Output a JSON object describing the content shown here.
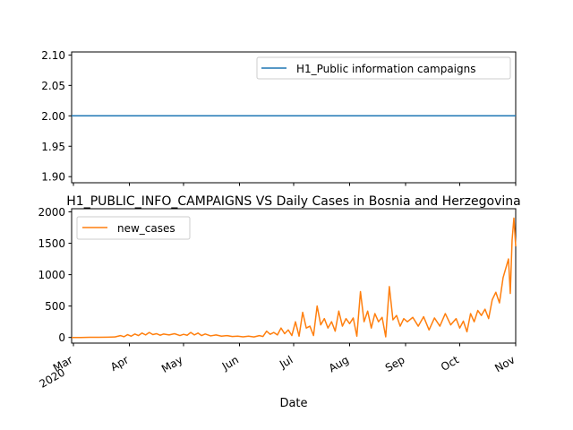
{
  "chart_data": [
    {
      "type": "line",
      "title": "",
      "xlabel": "",
      "ylabel": "",
      "ylim": [
        1.89,
        2.105
      ],
      "yticks": [
        "1.90",
        "1.95",
        "2.00",
        "2.05",
        "2.10"
      ],
      "ytick_values": [
        1.9,
        1.95,
        2.0,
        2.05,
        2.1
      ],
      "legend_position": "upper right",
      "series": [
        {
          "name": "H1_Public information campaigns",
          "color": "#1f77b4",
          "x": [
            "2020-02-29",
            "2020-11-01"
          ],
          "values": [
            2,
            2
          ]
        }
      ]
    },
    {
      "type": "line",
      "title": "H1_PUBLIC_INFO_CAMPAIGNS VS Daily Cases in Bosnia and Herzegovina",
      "xlabel": "Date",
      "ylabel": "",
      "ylim": [
        -90,
        2050
      ],
      "yticks": [
        "0",
        "500",
        "1000",
        "1500",
        "2000"
      ],
      "ytick_values": [
        0,
        500,
        1000,
        1500,
        2000
      ],
      "xlim": [
        "2020-02-29",
        "2020-11-01"
      ],
      "xticks": [
        "Mar\n2020",
        "Apr",
        "May",
        "Jun",
        "Jul",
        "Aug",
        "Sep",
        "Oct",
        "Nov"
      ],
      "xtick_dates": [
        "2020-03-01",
        "2020-04-01",
        "2020-05-01",
        "2020-06-01",
        "2020-07-01",
        "2020-08-01",
        "2020-09-01",
        "2020-10-01",
        "2020-11-01"
      ],
      "legend_position": "upper left",
      "series": [
        {
          "name": "new_cases",
          "color": "#ff7f0e",
          "points": [
            [
              "2020-02-29",
              0
            ],
            [
              "2020-03-05",
              0
            ],
            [
              "2020-03-10",
              2
            ],
            [
              "2020-03-15",
              3
            ],
            [
              "2020-03-20",
              5
            ],
            [
              "2020-03-24",
              8
            ],
            [
              "2020-03-27",
              30
            ],
            [
              "2020-03-29",
              12
            ],
            [
              "2020-03-31",
              45
            ],
            [
              "2020-04-02",
              20
            ],
            [
              "2020-04-04",
              55
            ],
            [
              "2020-04-06",
              30
            ],
            [
              "2020-04-08",
              70
            ],
            [
              "2020-04-10",
              40
            ],
            [
              "2020-04-12",
              80
            ],
            [
              "2020-04-14",
              45
            ],
            [
              "2020-04-16",
              60
            ],
            [
              "2020-04-18",
              35
            ],
            [
              "2020-04-20",
              55
            ],
            [
              "2020-04-23",
              40
            ],
            [
              "2020-04-26",
              60
            ],
            [
              "2020-04-29",
              30
            ],
            [
              "2020-05-01",
              50
            ],
            [
              "2020-05-03",
              35
            ],
            [
              "2020-05-05",
              80
            ],
            [
              "2020-05-07",
              40
            ],
            [
              "2020-05-09",
              70
            ],
            [
              "2020-05-11",
              30
            ],
            [
              "2020-05-13",
              55
            ],
            [
              "2020-05-16",
              25
            ],
            [
              "2020-05-19",
              40
            ],
            [
              "2020-05-22",
              20
            ],
            [
              "2020-05-25",
              30
            ],
            [
              "2020-05-28",
              15
            ],
            [
              "2020-05-31",
              20
            ],
            [
              "2020-06-03",
              10
            ],
            [
              "2020-06-06",
              20
            ],
            [
              "2020-06-09",
              8
            ],
            [
              "2020-06-12",
              30
            ],
            [
              "2020-06-14",
              15
            ],
            [
              "2020-06-16",
              100
            ],
            [
              "2020-06-18",
              50
            ],
            [
              "2020-06-20",
              80
            ],
            [
              "2020-06-22",
              40
            ],
            [
              "2020-06-24",
              150
            ],
            [
              "2020-06-26",
              60
            ],
            [
              "2020-06-28",
              120
            ],
            [
              "2020-06-30",
              30
            ],
            [
              "2020-07-02",
              250
            ],
            [
              "2020-07-04",
              20
            ],
            [
              "2020-07-06",
              400
            ],
            [
              "2020-07-08",
              150
            ],
            [
              "2020-07-10",
              180
            ],
            [
              "2020-07-12",
              30
            ],
            [
              "2020-07-14",
              500
            ],
            [
              "2020-07-16",
              200
            ],
            [
              "2020-07-18",
              300
            ],
            [
              "2020-07-20",
              150
            ],
            [
              "2020-07-22",
              250
            ],
            [
              "2020-07-24",
              100
            ],
            [
              "2020-07-26",
              420
            ],
            [
              "2020-07-28",
              180
            ],
            [
              "2020-07-30",
              300
            ],
            [
              "2020-08-01",
              220
            ],
            [
              "2020-08-03",
              310
            ],
            [
              "2020-08-05",
              20
            ],
            [
              "2020-08-07",
              730
            ],
            [
              "2020-08-09",
              250
            ],
            [
              "2020-08-11",
              420
            ],
            [
              "2020-08-13",
              150
            ],
            [
              "2020-08-15",
              380
            ],
            [
              "2020-08-17",
              250
            ],
            [
              "2020-08-19",
              320
            ],
            [
              "2020-08-21",
              10
            ],
            [
              "2020-08-23",
              810
            ],
            [
              "2020-08-25",
              280
            ],
            [
              "2020-08-27",
              350
            ],
            [
              "2020-08-29",
              180
            ],
            [
              "2020-08-31",
              300
            ],
            [
              "2020-09-02",
              250
            ],
            [
              "2020-09-05",
              320
            ],
            [
              "2020-09-08",
              180
            ],
            [
              "2020-09-11",
              330
            ],
            [
              "2020-09-14",
              120
            ],
            [
              "2020-09-17",
              310
            ],
            [
              "2020-09-20",
              180
            ],
            [
              "2020-09-23",
              380
            ],
            [
              "2020-09-26",
              200
            ],
            [
              "2020-09-29",
              300
            ],
            [
              "2020-10-01",
              150
            ],
            [
              "2020-10-03",
              260
            ],
            [
              "2020-10-05",
              90
            ],
            [
              "2020-10-07",
              380
            ],
            [
              "2020-10-09",
              250
            ],
            [
              "2020-10-11",
              430
            ],
            [
              "2020-10-13",
              350
            ],
            [
              "2020-10-15",
              450
            ],
            [
              "2020-10-17",
              300
            ],
            [
              "2020-10-19",
              600
            ],
            [
              "2020-10-21",
              720
            ],
            [
              "2020-10-23",
              550
            ],
            [
              "2020-10-25",
              950
            ],
            [
              "2020-10-27",
              1150
            ],
            [
              "2020-10-28",
              1250
            ],
            [
              "2020-10-29",
              700
            ],
            [
              "2020-10-30",
              1550
            ],
            [
              "2020-10-31",
              1900
            ],
            [
              "2020-11-01",
              1450
            ]
          ]
        }
      ]
    }
  ]
}
